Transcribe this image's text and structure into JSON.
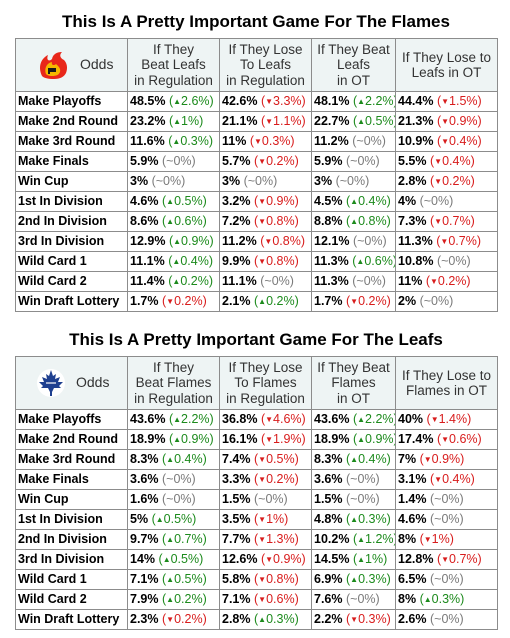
{
  "flames": {
    "title": "This Is A Pretty Important Game For The Flames",
    "header": {
      "odds": "Odds",
      "cols": [
        "If They\nBeat Leafs\nin Regulation",
        "If They Lose\nTo Leafs\nin Regulation",
        "If They Beat\nLeafs\nin OT",
        "If They Lose to\nLeafs in OT"
      ]
    },
    "rows": [
      {
        "label": "Make Playoffs",
        "cells": [
          {
            "pct": "48.5%",
            "chg": "2.6%",
            "dir": "up"
          },
          {
            "pct": "42.6%",
            "chg": "3.3%",
            "dir": "down"
          },
          {
            "pct": "48.1%",
            "chg": "2.2%",
            "dir": "up"
          },
          {
            "pct": "44.4%",
            "chg": "1.5%",
            "dir": "down"
          }
        ]
      },
      {
        "label": "Make 2nd Round",
        "cells": [
          {
            "pct": "23.2%",
            "chg": "1%",
            "dir": "up"
          },
          {
            "pct": "21.1%",
            "chg": "1.1%",
            "dir": "down"
          },
          {
            "pct": "22.7%",
            "chg": "0.5%",
            "dir": "up"
          },
          {
            "pct": "21.3%",
            "chg": "0.9%",
            "dir": "down"
          }
        ]
      },
      {
        "label": "Make 3rd Round",
        "cells": [
          {
            "pct": "11.6%",
            "chg": "0.3%",
            "dir": "up"
          },
          {
            "pct": "11%",
            "chg": "0.3%",
            "dir": "down"
          },
          {
            "pct": "11.2%",
            "chg": "~0%",
            "dir": "flat"
          },
          {
            "pct": "10.9%",
            "chg": "0.4%",
            "dir": "down"
          }
        ]
      },
      {
        "label": "Make Finals",
        "cells": [
          {
            "pct": "5.9%",
            "chg": "~0%",
            "dir": "flat"
          },
          {
            "pct": "5.7%",
            "chg": "0.2%",
            "dir": "down"
          },
          {
            "pct": "5.9%",
            "chg": "~0%",
            "dir": "flat"
          },
          {
            "pct": "5.5%",
            "chg": "0.4%",
            "dir": "down"
          }
        ]
      },
      {
        "label": "Win Cup",
        "cells": [
          {
            "pct": "3%",
            "chg": "~0%",
            "dir": "flat"
          },
          {
            "pct": "3%",
            "chg": "~0%",
            "dir": "flat"
          },
          {
            "pct": "3%",
            "chg": "~0%",
            "dir": "flat"
          },
          {
            "pct": "2.8%",
            "chg": "0.2%",
            "dir": "down"
          }
        ]
      },
      {
        "label": "1st In Division",
        "cells": [
          {
            "pct": "4.6%",
            "chg": "0.5%",
            "dir": "up"
          },
          {
            "pct": "3.2%",
            "chg": "0.9%",
            "dir": "down"
          },
          {
            "pct": "4.5%",
            "chg": "0.4%",
            "dir": "up"
          },
          {
            "pct": "4%",
            "chg": "~0%",
            "dir": "flat"
          }
        ]
      },
      {
        "label": "2nd In Division",
        "cells": [
          {
            "pct": "8.6%",
            "chg": "0.6%",
            "dir": "up"
          },
          {
            "pct": "7.2%",
            "chg": "0.8%",
            "dir": "down"
          },
          {
            "pct": "8.8%",
            "chg": "0.8%",
            "dir": "up"
          },
          {
            "pct": "7.3%",
            "chg": "0.7%",
            "dir": "down"
          }
        ]
      },
      {
        "label": "3rd In Division",
        "cells": [
          {
            "pct": "12.9%",
            "chg": "0.9%",
            "dir": "up"
          },
          {
            "pct": "11.2%",
            "chg": "0.8%",
            "dir": "down"
          },
          {
            "pct": "12.1%",
            "chg": "~0%",
            "dir": "flat"
          },
          {
            "pct": "11.3%",
            "chg": "0.7%",
            "dir": "down"
          }
        ]
      },
      {
        "label": "Wild Card 1",
        "cells": [
          {
            "pct": "11.1%",
            "chg": "0.4%",
            "dir": "up"
          },
          {
            "pct": "9.9%",
            "chg": "0.8%",
            "dir": "down"
          },
          {
            "pct": "11.3%",
            "chg": "0.6%",
            "dir": "up"
          },
          {
            "pct": "10.8%",
            "chg": "~0%",
            "dir": "flat"
          }
        ]
      },
      {
        "label": "Wild Card 2",
        "cells": [
          {
            "pct": "11.4%",
            "chg": "0.2%",
            "dir": "up"
          },
          {
            "pct": "11.1%",
            "chg": "~0%",
            "dir": "flat"
          },
          {
            "pct": "11.3%",
            "chg": "~0%",
            "dir": "flat"
          },
          {
            "pct": "11%",
            "chg": "0.2%",
            "dir": "down"
          }
        ]
      },
      {
        "label": "Win Draft Lottery",
        "cells": [
          {
            "pct": "1.7%",
            "chg": "0.2%",
            "dir": "down"
          },
          {
            "pct": "2.1%",
            "chg": "0.2%",
            "dir": "up"
          },
          {
            "pct": "1.7%",
            "chg": "0.2%",
            "dir": "down"
          },
          {
            "pct": "2%",
            "chg": "~0%",
            "dir": "flat"
          }
        ]
      }
    ]
  },
  "leafs": {
    "title": "This Is A Pretty Important Game For The Leafs",
    "header": {
      "odds": "Odds",
      "cols": [
        "If They\nBeat Flames\nin Regulation",
        "If They Lose\nTo Flames\nin Regulation",
        "If They Beat\nFlames\nin OT",
        "If They Lose to\nFlames in OT"
      ]
    },
    "rows": [
      {
        "label": "Make Playoffs",
        "cells": [
          {
            "pct": "43.6%",
            "chg": "2.2%",
            "dir": "up"
          },
          {
            "pct": "36.8%",
            "chg": "4.6%",
            "dir": "down"
          },
          {
            "pct": "43.6%",
            "chg": "2.2%",
            "dir": "up"
          },
          {
            "pct": "40%",
            "chg": "1.4%",
            "dir": "down"
          }
        ]
      },
      {
        "label": "Make 2nd Round",
        "cells": [
          {
            "pct": "18.9%",
            "chg": "0.9%",
            "dir": "up"
          },
          {
            "pct": "16.1%",
            "chg": "1.9%",
            "dir": "down"
          },
          {
            "pct": "18.9%",
            "chg": "0.9%",
            "dir": "up"
          },
          {
            "pct": "17.4%",
            "chg": "0.6%",
            "dir": "down"
          }
        ]
      },
      {
        "label": "Make 3rd Round",
        "cells": [
          {
            "pct": "8.3%",
            "chg": "0.4%",
            "dir": "up"
          },
          {
            "pct": "7.4%",
            "chg": "0.5%",
            "dir": "down"
          },
          {
            "pct": "8.3%",
            "chg": "0.4%",
            "dir": "up"
          },
          {
            "pct": "7%",
            "chg": "0.9%",
            "dir": "down"
          }
        ]
      },
      {
        "label": "Make Finals",
        "cells": [
          {
            "pct": "3.6%",
            "chg": "~0%",
            "dir": "flat"
          },
          {
            "pct": "3.3%",
            "chg": "0.2%",
            "dir": "down"
          },
          {
            "pct": "3.6%",
            "chg": "~0%",
            "dir": "flat"
          },
          {
            "pct": "3.1%",
            "chg": "0.4%",
            "dir": "down"
          }
        ]
      },
      {
        "label": "Win Cup",
        "cells": [
          {
            "pct": "1.6%",
            "chg": "~0%",
            "dir": "flat"
          },
          {
            "pct": "1.5%",
            "chg": "~0%",
            "dir": "flat"
          },
          {
            "pct": "1.5%",
            "chg": "~0%",
            "dir": "flat"
          },
          {
            "pct": "1.4%",
            "chg": "~0%",
            "dir": "flat"
          }
        ]
      },
      {
        "label": "1st In Division",
        "cells": [
          {
            "pct": "5%",
            "chg": "0.5%",
            "dir": "up"
          },
          {
            "pct": "3.5%",
            "chg": "1%",
            "dir": "down"
          },
          {
            "pct": "4.8%",
            "chg": "0.3%",
            "dir": "up"
          },
          {
            "pct": "4.6%",
            "chg": "~0%",
            "dir": "flat"
          }
        ]
      },
      {
        "label": "2nd In Division",
        "cells": [
          {
            "pct": "9.7%",
            "chg": "0.7%",
            "dir": "up"
          },
          {
            "pct": "7.7%",
            "chg": "1.3%",
            "dir": "down"
          },
          {
            "pct": "10.2%",
            "chg": "1.2%",
            "dir": "up"
          },
          {
            "pct": "8%",
            "chg": "1%",
            "dir": "down"
          }
        ]
      },
      {
        "label": "3rd In Division",
        "cells": [
          {
            "pct": "14%",
            "chg": "0.5%",
            "dir": "up"
          },
          {
            "pct": "12.6%",
            "chg": "0.9%",
            "dir": "down"
          },
          {
            "pct": "14.5%",
            "chg": "1%",
            "dir": "up"
          },
          {
            "pct": "12.8%",
            "chg": "0.7%",
            "dir": "down"
          }
        ]
      },
      {
        "label": "Wild Card 1",
        "cells": [
          {
            "pct": "7.1%",
            "chg": "0.5%",
            "dir": "up"
          },
          {
            "pct": "5.8%",
            "chg": "0.8%",
            "dir": "down"
          },
          {
            "pct": "6.9%",
            "chg": "0.3%",
            "dir": "up"
          },
          {
            "pct": "6.5%",
            "chg": "~0%",
            "dir": "flat"
          }
        ]
      },
      {
        "label": "Wild Card 2",
        "cells": [
          {
            "pct": "7.9%",
            "chg": "0.2%",
            "dir": "up"
          },
          {
            "pct": "7.1%",
            "chg": "0.6%",
            "dir": "down"
          },
          {
            "pct": "7.6%",
            "chg": "~0%",
            "dir": "flat"
          },
          {
            "pct": "8%",
            "chg": "0.3%",
            "dir": "up"
          }
        ]
      },
      {
        "label": "Win Draft Lottery",
        "cells": [
          {
            "pct": "2.3%",
            "chg": "0.2%",
            "dir": "down"
          },
          {
            "pct": "2.8%",
            "chg": "0.3%",
            "dir": "up"
          },
          {
            "pct": "2.2%",
            "chg": "0.3%",
            "dir": "down"
          },
          {
            "pct": "2.6%",
            "chg": "~0%",
            "dir": "flat"
          }
        ]
      }
    ]
  },
  "icons": {
    "flames_logo": "flames-logo-icon",
    "leafs_logo": "maple-leaf-logo-icon"
  },
  "colors": {
    "up": "#1c8a1c",
    "down": "#d81c1c",
    "flat": "#7a7a7a",
    "header_bg": "#eef4f4"
  }
}
